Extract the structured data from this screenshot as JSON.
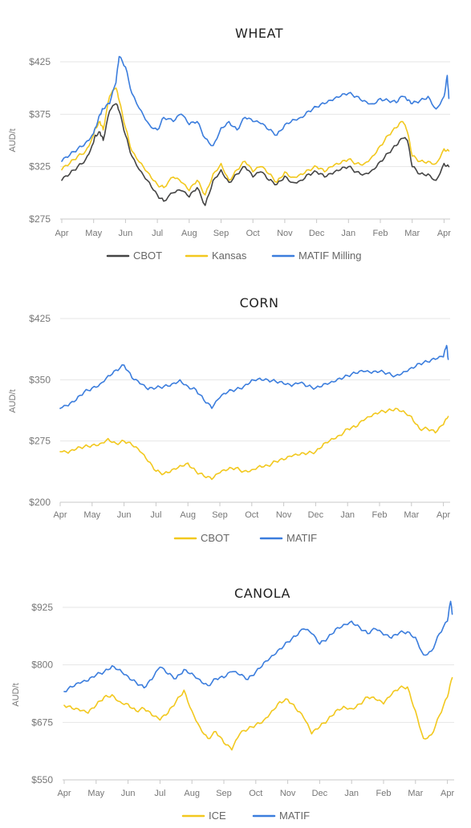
{
  "chart_data": [
    {
      "type": "line",
      "title": "WHEAT",
      "ylabel": "AUD/t",
      "yticks": [
        275,
        325,
        375,
        425
      ],
      "ytick_labels": [
        "$275",
        "$325",
        "$375",
        "$425"
      ],
      "ylim": [
        275,
        425
      ],
      "months": [
        "Apr",
        "May",
        "Jun",
        "Jul",
        "Aug",
        "Sep",
        "Oct",
        "Nov",
        "Dec",
        "Jan",
        "Feb",
        "Mar",
        "Apr"
      ],
      "grid": true,
      "legend": "bottom",
      "series": [
        {
          "name": "CBOT",
          "color": "#444444",
          "x": [
            0,
            0.25,
            0.5,
            0.75,
            0.95,
            1.05,
            1.2,
            1.3,
            1.5,
            1.7,
            1.8,
            2.0,
            2.2,
            2.5,
            2.75,
            3.0,
            3.2,
            3.5,
            3.75,
            4.0,
            4.25,
            4.5,
            4.75,
            5.0,
            5.25,
            5.5,
            5.75,
            6.0,
            6.25,
            6.5,
            6.75,
            7.0,
            7.25,
            7.5,
            7.75,
            8.0,
            8.25,
            8.5,
            8.75,
            9.0,
            9.25,
            9.5,
            9.75,
            10.0,
            10.25,
            10.5,
            10.7,
            10.85,
            11.0,
            11.25,
            11.5,
            11.75,
            12.0,
            12.15
          ],
          "values": [
            312,
            318,
            325,
            332,
            345,
            355,
            358,
            350,
            378,
            385,
            378,
            355,
            335,
            320,
            310,
            298,
            292,
            300,
            302,
            296,
            305,
            288,
            312,
            322,
            310,
            318,
            325,
            315,
            320,
            312,
            308,
            316,
            310,
            312,
            318,
            320,
            315,
            318,
            322,
            325,
            320,
            318,
            322,
            330,
            338,
            345,
            352,
            350,
            325,
            318,
            318,
            312,
            328,
            325
          ]
        },
        {
          "name": "Kansas",
          "color": "#f2c81e",
          "x": [
            0,
            0.25,
            0.5,
            0.75,
            0.95,
            1.05,
            1.2,
            1.3,
            1.5,
            1.7,
            1.8,
            2.0,
            2.2,
            2.5,
            2.75,
            3.0,
            3.2,
            3.5,
            3.75,
            4.0,
            4.25,
            4.5,
            4.75,
            5.0,
            5.25,
            5.5,
            5.75,
            6.0,
            6.25,
            6.5,
            6.75,
            7.0,
            7.25,
            7.5,
            7.75,
            8.0,
            8.25,
            8.5,
            8.75,
            9.0,
            9.25,
            9.5,
            9.75,
            10.0,
            10.25,
            10.5,
            10.7,
            10.85,
            11.0,
            11.25,
            11.5,
            11.75,
            12.0,
            12.15
          ],
          "values": [
            322,
            328,
            335,
            340,
            352,
            362,
            368,
            360,
            392,
            400,
            388,
            362,
            340,
            328,
            318,
            308,
            305,
            315,
            310,
            302,
            312,
            298,
            318,
            328,
            312,
            322,
            330,
            320,
            325,
            318,
            310,
            320,
            315,
            318,
            322,
            325,
            320,
            325,
            328,
            332,
            328,
            328,
            335,
            345,
            355,
            362,
            368,
            358,
            335,
            330,
            330,
            328,
            342,
            340
          ]
        },
        {
          "name": "MATIF Milling",
          "color": "#3b7ddd",
          "x": [
            0,
            0.25,
            0.5,
            0.75,
            0.95,
            1.05,
            1.2,
            1.3,
            1.5,
            1.7,
            1.8,
            2.0,
            2.2,
            2.5,
            2.75,
            3.0,
            3.2,
            3.5,
            3.75,
            4.0,
            4.25,
            4.5,
            4.75,
            5.0,
            5.25,
            5.5,
            5.75,
            6.0,
            6.25,
            6.5,
            6.75,
            7.0,
            7.25,
            7.5,
            7.75,
            8.0,
            8.25,
            8.5,
            8.75,
            9.0,
            9.25,
            9.5,
            9.75,
            10.0,
            10.25,
            10.5,
            10.7,
            10.85,
            11.0,
            11.25,
            11.5,
            11.75,
            12.0,
            12.1,
            12.15
          ],
          "values": [
            330,
            336,
            342,
            348,
            355,
            362,
            375,
            380,
            385,
            405,
            430,
            420,
            395,
            378,
            365,
            360,
            372,
            368,
            375,
            365,
            368,
            352,
            345,
            362,
            368,
            360,
            372,
            368,
            366,
            360,
            355,
            365,
            370,
            372,
            378,
            382,
            385,
            388,
            392,
            395,
            392,
            388,
            385,
            390,
            388,
            386,
            392,
            388,
            385,
            388,
            392,
            380,
            392,
            412,
            390
          ]
        }
      ]
    },
    {
      "type": "line",
      "title": "CORN",
      "ylabel": "AUD/t",
      "yticks": [
        200,
        275,
        350,
        425
      ],
      "ytick_labels": [
        "$200",
        "$275",
        "$350",
        "$425"
      ],
      "ylim": [
        200,
        425
      ],
      "months": [
        "Apr",
        "May",
        "Jun",
        "Jul",
        "Aug",
        "Sep",
        "Oct",
        "Nov",
        "Dec",
        "Jan",
        "Feb",
        "Mar",
        "Apr"
      ],
      "grid": true,
      "legend": "bottom",
      "series": [
        {
          "name": "CBOT",
          "color": "#f2c81e",
          "x": [
            0,
            0.25,
            0.5,
            0.75,
            1.0,
            1.25,
            1.5,
            1.75,
            2.0,
            2.25,
            2.5,
            2.75,
            3.0,
            3.25,
            3.5,
            3.75,
            4.0,
            4.25,
            4.5,
            4.75,
            5.0,
            5.25,
            5.5,
            5.75,
            6.0,
            6.25,
            6.5,
            6.75,
            7.0,
            7.25,
            7.5,
            7.75,
            8.0,
            8.25,
            8.5,
            8.75,
            9.0,
            9.25,
            9.5,
            9.75,
            10.0,
            10.25,
            10.5,
            10.75,
            11.0,
            11.25,
            11.5,
            11.75,
            12.0,
            12.15
          ],
          "values": [
            262,
            260,
            265,
            268,
            270,
            272,
            278,
            272,
            275,
            270,
            262,
            250,
            238,
            235,
            240,
            245,
            248,
            238,
            232,
            228,
            236,
            240,
            242,
            238,
            240,
            245,
            245,
            250,
            252,
            256,
            258,
            260,
            262,
            272,
            278,
            282,
            290,
            292,
            300,
            305,
            310,
            312,
            315,
            312,
            305,
            290,
            290,
            285,
            295,
            305
          ]
        },
        {
          "name": "MATIF",
          "color": "#3b7ddd",
          "x": [
            0,
            0.25,
            0.5,
            0.75,
            1.0,
            1.25,
            1.5,
            1.75,
            2.0,
            2.25,
            2.5,
            2.75,
            3.0,
            3.25,
            3.5,
            3.75,
            4.0,
            4.25,
            4.5,
            4.75,
            5.0,
            5.25,
            5.5,
            5.75,
            6.0,
            6.25,
            6.5,
            6.75,
            7.0,
            7.25,
            7.5,
            7.75,
            8.0,
            8.25,
            8.5,
            8.75,
            9.0,
            9.25,
            9.5,
            9.75,
            10.0,
            10.25,
            10.5,
            10.75,
            11.0,
            11.25,
            11.5,
            11.75,
            12.0,
            12.1,
            12.15
          ],
          "values": [
            315,
            318,
            325,
            335,
            340,
            345,
            355,
            362,
            368,
            352,
            345,
            338,
            340,
            342,
            345,
            350,
            342,
            338,
            325,
            315,
            328,
            335,
            338,
            342,
            350,
            352,
            350,
            348,
            345,
            342,
            346,
            342,
            340,
            345,
            348,
            352,
            355,
            358,
            360,
            358,
            360,
            358,
            355,
            360,
            365,
            370,
            372,
            375,
            378,
            392,
            375
          ]
        }
      ]
    },
    {
      "type": "line",
      "title": "CANOLA",
      "ylabel": "AUD/t",
      "yticks": [
        550,
        675,
        800,
        925
      ],
      "ytick_labels": [
        "$550",
        "$675",
        "$800",
        "$925"
      ],
      "ylim": [
        550,
        925
      ],
      "months": [
        "Apr",
        "May",
        "Jun",
        "Jul",
        "Aug",
        "Sep",
        "Oct",
        "Nov",
        "Dec",
        "Jan",
        "Feb",
        "Mar",
        "Apr"
      ],
      "grid": true,
      "legend": "bottom",
      "series": [
        {
          "name": "ICE",
          "color": "#f2c81e",
          "x": [
            0,
            0.25,
            0.5,
            0.75,
            1.0,
            1.25,
            1.5,
            1.75,
            2.0,
            2.25,
            2.5,
            2.75,
            3.0,
            3.25,
            3.5,
            3.75,
            4.0,
            4.25,
            4.5,
            4.75,
            5.0,
            5.25,
            5.5,
            5.75,
            6.0,
            6.25,
            6.5,
            6.75,
            7.0,
            7.25,
            7.5,
            7.75,
            8.0,
            8.25,
            8.5,
            8.75,
            9.0,
            9.25,
            9.5,
            9.75,
            10.0,
            10.25,
            10.5,
            10.75,
            11.0,
            11.25,
            11.5,
            11.75,
            12.0,
            12.15
          ],
          "values": [
            712,
            705,
            700,
            695,
            712,
            730,
            735,
            720,
            715,
            700,
            705,
            690,
            680,
            695,
            720,
            745,
            700,
            665,
            640,
            655,
            630,
            615,
            650,
            660,
            670,
            680,
            700,
            720,
            725,
            705,
            685,
            650,
            665,
            680,
            700,
            710,
            705,
            715,
            730,
            725,
            715,
            735,
            750,
            752,
            700,
            640,
            648,
            690,
            730,
            772
          ]
        },
        {
          "name": "MATIF",
          "color": "#3b7ddd",
          "x": [
            0,
            0.25,
            0.5,
            0.75,
            1.0,
            1.25,
            1.5,
            1.75,
            2.0,
            2.25,
            2.5,
            2.75,
            3.0,
            3.25,
            3.5,
            3.75,
            4.0,
            4.25,
            4.5,
            4.75,
            5.0,
            5.25,
            5.5,
            5.75,
            6.0,
            6.25,
            6.5,
            6.75,
            7.0,
            7.25,
            7.5,
            7.75,
            8.0,
            8.25,
            8.5,
            8.75,
            9.0,
            9.25,
            9.5,
            9.75,
            10.0,
            10.25,
            10.5,
            10.75,
            11.0,
            11.25,
            11.5,
            11.75,
            12.0,
            12.1,
            12.15
          ],
          "values": [
            742,
            752,
            760,
            765,
            778,
            785,
            798,
            790,
            775,
            762,
            750,
            768,
            795,
            780,
            770,
            790,
            782,
            768,
            755,
            770,
            772,
            785,
            778,
            768,
            785,
            805,
            820,
            835,
            850,
            862,
            878,
            868,
            845,
            858,
            878,
            888,
            895,
            882,
            868,
            878,
            865,
            858,
            870,
            872,
            860,
            822,
            830,
            868,
            895,
            938,
            910
          ]
        }
      ]
    }
  ]
}
